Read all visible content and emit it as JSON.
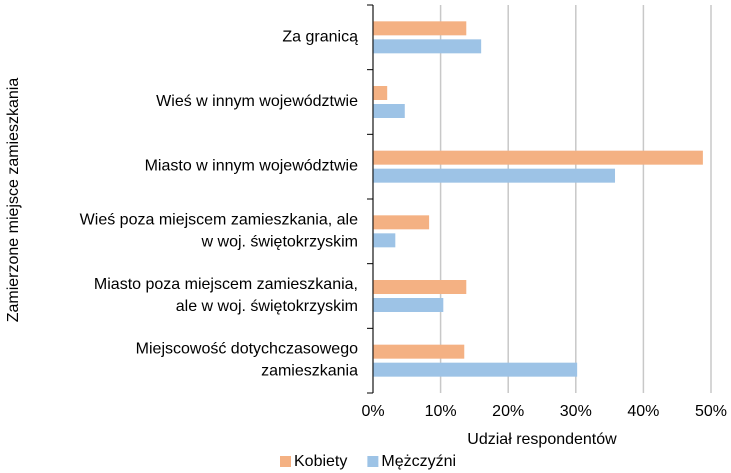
{
  "chart_data": {
    "type": "barh",
    "categories": [
      [
        "Za granicą"
      ],
      [
        "Wieś w innym województwie"
      ],
      [
        "Miasto w innym województwie"
      ],
      [
        "Wieś poza miejscem zamieszkania, ale",
        "w woj. świętokrzyskim"
      ],
      [
        "Miasto poza miejscem zamieszkania,",
        "ale w woj. świętokrzyskim"
      ],
      [
        "Miejscowość dotychczasowego",
        "zamieszkania"
      ]
    ],
    "series": [
      {
        "name": "Kobiety",
        "color": "#F4B183",
        "values": [
          13.8,
          2.1,
          48.8,
          8.3,
          13.8,
          13.5
        ]
      },
      {
        "name": "Mężczyźni",
        "color": "#9DC3E6",
        "values": [
          16.0,
          4.7,
          35.8,
          3.3,
          10.4,
          30.2
        ]
      }
    ],
    "xlabel": "Udział respondentów",
    "ylabel": "Zamierzone miejsce zamieszkania",
    "xlim": [
      0,
      50
    ],
    "xticks": [
      {
        "value": 0,
        "label": "0%"
      },
      {
        "value": 10,
        "label": "10%"
      },
      {
        "value": 20,
        "label": "20%"
      },
      {
        "value": 30,
        "label": "30%"
      },
      {
        "value": 40,
        "label": "40%"
      },
      {
        "value": 50,
        "label": "50%"
      }
    ],
    "grid": true,
    "legend": "bottom"
  }
}
